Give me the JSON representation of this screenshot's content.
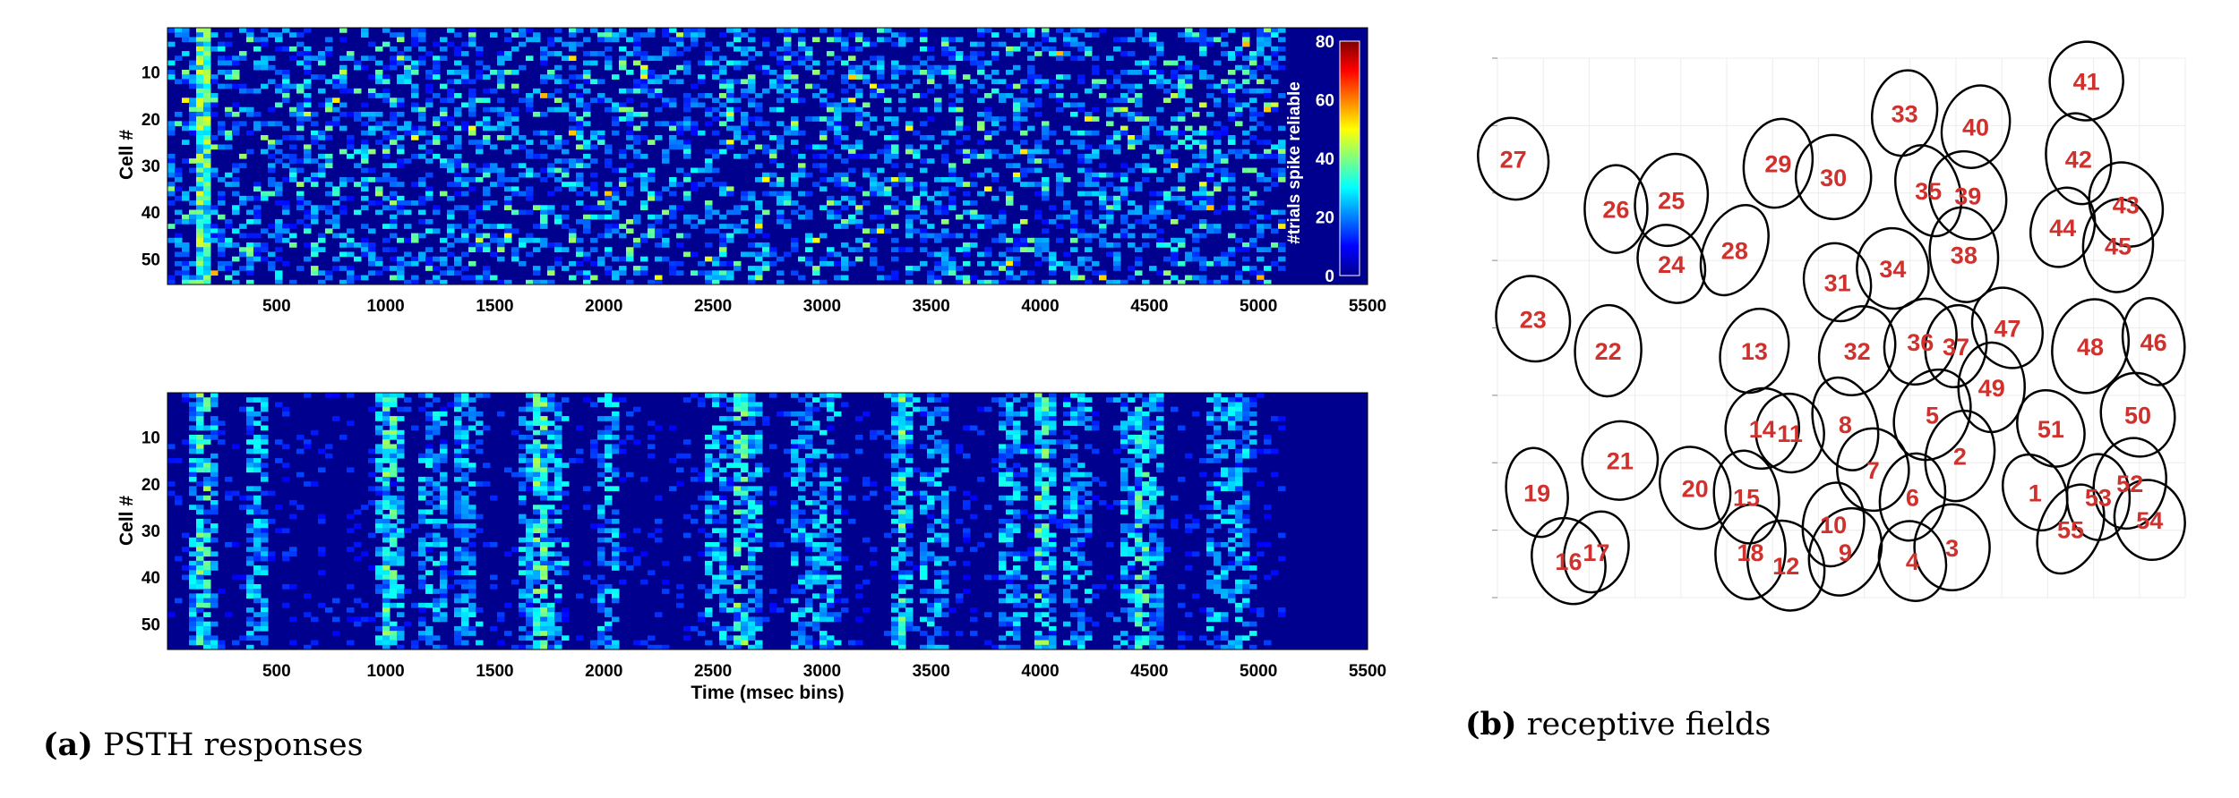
{
  "chart_data": [
    {
      "type": "heatmap",
      "panel": "top",
      "ylabel": "Cell #",
      "xlabel": "",
      "xlim": [
        0,
        5500
      ],
      "ylim": [
        1,
        55
      ],
      "x_ticks": [
        "500",
        "1000",
        "1500",
        "2000",
        "2500",
        "3000",
        "3500",
        "4000",
        "4500",
        "5000",
        "5500"
      ],
      "y_ticks": [
        "10",
        "20",
        "30",
        "40",
        "50"
      ],
      "data_extent_x": [
        0,
        5100
      ],
      "colorbar": {
        "label": "#trials spike reliable",
        "ticks": [
          "0",
          "20",
          "40",
          "60",
          "80"
        ],
        "range": [
          0,
          80
        ],
        "colormap": "jet"
      },
      "description_values": {
        "onset_column_x": 150,
        "max_value_approx": 80,
        "typical_value": 10
      }
    },
    {
      "type": "heatmap",
      "panel": "bottom",
      "ylabel": "Cell #",
      "xlabel": "Time (msec bins)",
      "xlim": [
        0,
        5500
      ],
      "ylim": [
        1,
        55
      ],
      "x_ticks": [
        "500",
        "1000",
        "1500",
        "2000",
        "2500",
        "3000",
        "3500",
        "4000",
        "4500",
        "5000",
        "5500"
      ],
      "y_ticks": [
        "10",
        "20",
        "30",
        "40",
        "50"
      ],
      "data_extent_x": [
        0,
        5100
      ],
      "colormap": "jet",
      "bright_time_columns": [
        150,
        1000,
        1700,
        2600,
        3350,
        4000,
        4450
      ],
      "stripe_times": [
        150,
        400,
        1000,
        1200,
        1350,
        1650,
        1750,
        2000,
        2500,
        2650,
        2900,
        3000,
        3350,
        3500,
        3850,
        4000,
        4150,
        4400,
        4500,
        4800,
        4900
      ]
    },
    {
      "type": "scatter",
      "panel": "receptive_fields",
      "points": [
        {
          "label": "1",
          "x": 7.0,
          "y": 1.9
        },
        {
          "label": "2",
          "x": 5.1,
          "y": 2.7
        },
        {
          "label": "3",
          "x": 4.9,
          "y": 0.7
        },
        {
          "label": "4",
          "x": 3.9,
          "y": 0.4
        },
        {
          "label": "5",
          "x": 4.4,
          "y": 3.6
        },
        {
          "label": "6",
          "x": 3.9,
          "y": 1.8
        },
        {
          "label": "7",
          "x": 2.9,
          "y": 2.4
        },
        {
          "label": "8",
          "x": 2.2,
          "y": 3.4
        },
        {
          "label": "9",
          "x": 2.2,
          "y": 0.6
        },
        {
          "label": "10",
          "x": 1.9,
          "y": 1.2
        },
        {
          "label": "11",
          "x": 0.8,
          "y": 3.2
        },
        {
          "label": "12",
          "x": 0.7,
          "y": 0.3
        },
        {
          "label": "13",
          "x": -0.1,
          "y": 5.0
        },
        {
          "label": "14",
          "x": 0.1,
          "y": 3.3
        },
        {
          "label": "15",
          "x": -0.3,
          "y": 1.8
        },
        {
          "label": "16",
          "x": -4.8,
          "y": 0.4
        },
        {
          "label": "17",
          "x": -4.1,
          "y": 0.6
        },
        {
          "label": "18",
          "x": -0.2,
          "y": 0.6
        },
        {
          "label": "19",
          "x": -5.6,
          "y": 1.9
        },
        {
          "label": "20",
          "x": -1.6,
          "y": 2.0
        },
        {
          "label": "21",
          "x": -3.5,
          "y": 2.6
        },
        {
          "label": "22",
          "x": -3.8,
          "y": 5.0
        },
        {
          "label": "23",
          "x": -5.7,
          "y": 5.7
        },
        {
          "label": "24",
          "x": -2.2,
          "y": 6.9
        },
        {
          "label": "25",
          "x": -2.2,
          "y": 8.3
        },
        {
          "label": "26",
          "x": -3.6,
          "y": 8.1
        },
        {
          "label": "27",
          "x": -6.2,
          "y": 9.2
        },
        {
          "label": "28",
          "x": -0.6,
          "y": 7.2
        },
        {
          "label": "29",
          "x": 0.5,
          "y": 9.1
        },
        {
          "label": "30",
          "x": 1.9,
          "y": 8.8
        },
        {
          "label": "31",
          "x": 2.0,
          "y": 6.5
        },
        {
          "label": "32",
          "x": 2.5,
          "y": 5.0
        },
        {
          "label": "33",
          "x": 3.7,
          "y": 10.2
        },
        {
          "label": "34",
          "x": 3.4,
          "y": 6.8
        },
        {
          "label": "35",
          "x": 4.3,
          "y": 8.5
        },
        {
          "label": "36",
          "x": 4.1,
          "y": 5.2
        },
        {
          "label": "37",
          "x": 5.0,
          "y": 5.1
        },
        {
          "label": "38",
          "x": 5.2,
          "y": 7.1
        },
        {
          "label": "39",
          "x": 5.3,
          "y": 8.4
        },
        {
          "label": "40",
          "x": 5.5,
          "y": 9.9
        },
        {
          "label": "41",
          "x": 8.3,
          "y": 10.9
        },
        {
          "label": "42",
          "x": 8.1,
          "y": 9.2
        },
        {
          "label": "43",
          "x": 9.3,
          "y": 8.2
        },
        {
          "label": "44",
          "x": 7.7,
          "y": 7.7
        },
        {
          "label": "45",
          "x": 9.1,
          "y": 7.3
        },
        {
          "label": "46",
          "x": 10.0,
          "y": 5.2
        },
        {
          "label": "47",
          "x": 6.3,
          "y": 5.5
        },
        {
          "label": "48",
          "x": 8.4,
          "y": 5.1
        },
        {
          "label": "49",
          "x": 5.9,
          "y": 4.2
        },
        {
          "label": "50",
          "x": 9.6,
          "y": 3.6
        },
        {
          "label": "51",
          "x": 7.4,
          "y": 3.3
        },
        {
          "label": "52",
          "x": 9.4,
          "y": 2.1
        },
        {
          "label": "53",
          "x": 8.6,
          "y": 1.8
        },
        {
          "label": "54",
          "x": 9.9,
          "y": 1.3
        },
        {
          "label": "55",
          "x": 7.9,
          "y": 1.1
        }
      ],
      "marker": "ellipse outline"
    }
  ],
  "captions": {
    "a_tag": "(a)",
    "a_text": "PSTH responses",
    "b_tag": "(b)",
    "b_text": "receptive fields"
  },
  "colors": {
    "heatmap_background": "#00008f",
    "label_color": "#d0312d",
    "ellipse_stroke": "#000000"
  }
}
